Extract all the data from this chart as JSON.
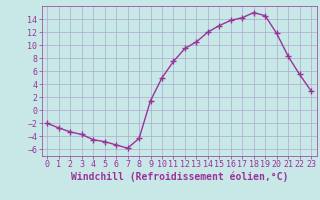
{
  "x": [
    0,
    1,
    2,
    3,
    4,
    5,
    6,
    7,
    8,
    9,
    10,
    11,
    12,
    13,
    14,
    15,
    16,
    17,
    18,
    19,
    20,
    21,
    22,
    23
  ],
  "y": [
    -2,
    -2.7,
    -3.3,
    -3.7,
    -4.5,
    -4.8,
    -5.3,
    -5.8,
    -4.3,
    1.5,
    5.0,
    7.5,
    9.5,
    10.5,
    12.0,
    13.0,
    13.8,
    14.2,
    15.0,
    14.5,
    11.8,
    8.3,
    5.5,
    3.0
  ],
  "line_color": "#993399",
  "marker": "+",
  "marker_size": 4,
  "bg_color": "#c8e8e8",
  "grid_color": "#aaaacc",
  "tick_color": "#993399",
  "label_color": "#993399",
  "xlabel": "Windchill (Refroidissement éolien,°C)",
  "xlim": [
    -0.5,
    23.5
  ],
  "ylim": [
    -7,
    16
  ],
  "yticks": [
    -6,
    -4,
    -2,
    0,
    2,
    4,
    6,
    8,
    10,
    12,
    14
  ],
  "xticks": [
    0,
    1,
    2,
    3,
    4,
    5,
    6,
    7,
    8,
    9,
    10,
    11,
    12,
    13,
    14,
    15,
    16,
    17,
    18,
    19,
    20,
    21,
    22,
    23
  ],
  "xlabel_fontsize": 7,
  "tick_fontsize": 6,
  "line_width": 1.0
}
